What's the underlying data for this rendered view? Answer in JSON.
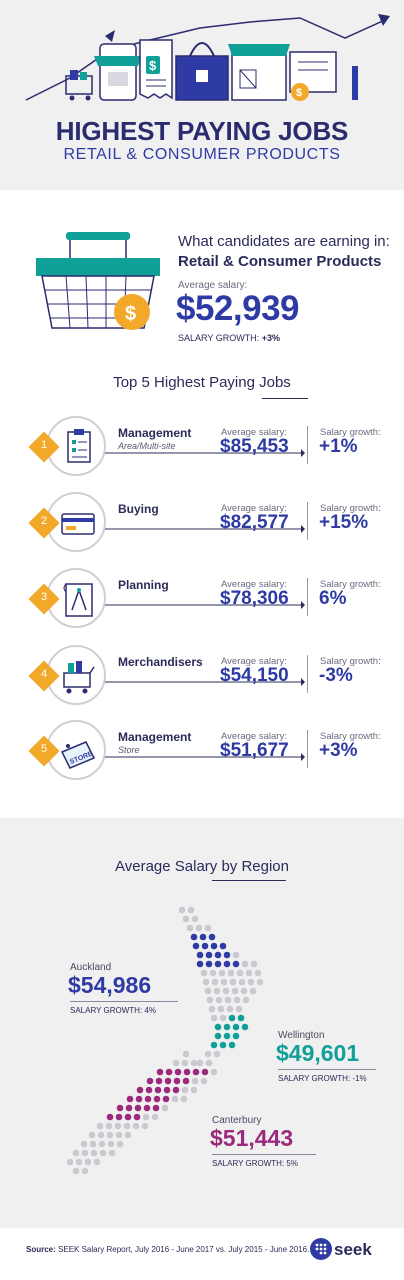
{
  "header": {
    "title": "HIGHEST PAYING JOBS",
    "subtitle": "RETAIL & CONSUMER PRODUCTS"
  },
  "summary": {
    "question": "What candidates are earning in:",
    "category": "Retail & Consumer Products",
    "avg_label": "Average salary:",
    "avg_value": "$52,939",
    "growth_label": "SALARY GROWTH:",
    "growth_value": "+3%"
  },
  "top_jobs": {
    "title": "Top 5 Highest Paying Jobs",
    "avg_label": "Average salary:",
    "growth_label": "Salary growth:",
    "items": [
      {
        "num": "1",
        "name": "Management",
        "sub": "Area/Multi-site",
        "avg": "$85,453",
        "growth": "+1%",
        "icon": "clipboard-icon"
      },
      {
        "num": "2",
        "name": "Buying",
        "sub": "",
        "avg": "$82,577",
        "growth": "+15%",
        "icon": "credit-card-icon"
      },
      {
        "num": "3",
        "name": "Planning",
        "sub": "",
        "avg": "$78,306",
        "growth": "6%",
        "icon": "compass-blueprint-icon"
      },
      {
        "num": "4",
        "name": "Merchandisers",
        "sub": "",
        "avg": "$54,150",
        "growth": "-3%",
        "icon": "shopping-cart-icon"
      },
      {
        "num": "5",
        "name": "Management",
        "sub": "Store",
        "avg": "$51,677",
        "growth": "+3%",
        "icon": "store-tag-icon"
      }
    ]
  },
  "region": {
    "title": "Average Salary by Region",
    "growth_label": "SALARY GROWTH:",
    "auckland": {
      "name": "Auckland",
      "value": "$54,986",
      "growth": "4%",
      "color": "#2f3ba5"
    },
    "wellington": {
      "name": "Wellington",
      "value": "$49,601",
      "growth": "-1%",
      "color": "#10a098"
    },
    "canterbury": {
      "name": "Canterbury",
      "value": "$51,443",
      "growth": "5%",
      "color": "#9b2a7d"
    }
  },
  "footer": {
    "source_label": "Source:",
    "source_text": "SEEK Salary Report, July 2016 - June 2017 vs. July 2015 - June 2016.",
    "brand": "seek"
  },
  "colors": {
    "navy": "#2b2b6f",
    "blue": "#2f3ba5",
    "accent": "#f2a929",
    "teal": "#10a098",
    "plum": "#9b2a7d"
  }
}
